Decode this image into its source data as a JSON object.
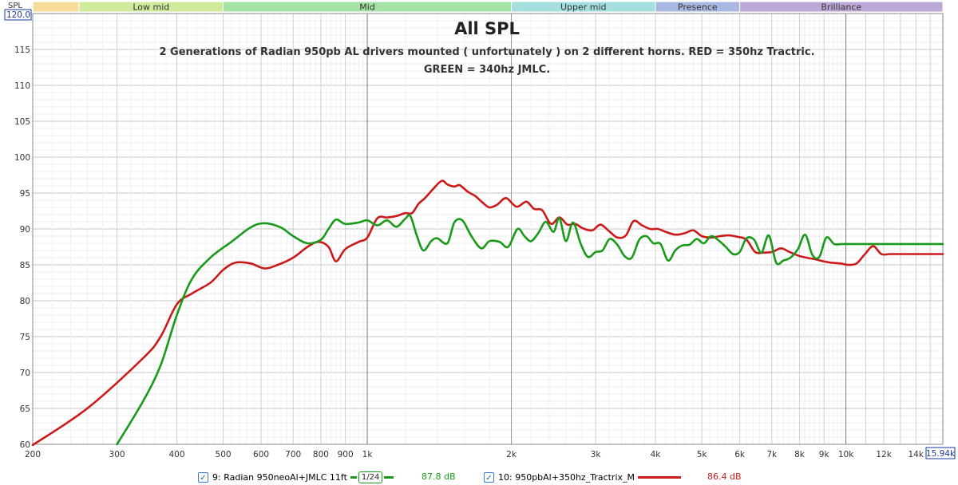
{
  "chart_data": {
    "type": "line",
    "title": "All SPL",
    "subtitle_lines": [
      "2 Generations of Radian 950pb AL drivers mounted ( unfortunately ) on 2 different horns. RED = 350hz Tractric.",
      "GREEN = 340hz JMLC."
    ],
    "ylabel": "SPL",
    "ylim": [
      60,
      120
    ],
    "xlim": [
      200,
      15940
    ],
    "x_scale": "log",
    "ymax_label": "120.0",
    "xmax_label": "15.94k",
    "grid": true,
    "y_ticks": [
      60,
      65,
      70,
      75,
      80,
      85,
      90,
      95,
      100,
      105,
      110,
      115
    ],
    "x_ticks": [
      {
        "value": 200,
        "label": "200"
      },
      {
        "value": 300,
        "label": "300"
      },
      {
        "value": 400,
        "label": "400"
      },
      {
        "value": 500,
        "label": "500"
      },
      {
        "value": 600,
        "label": "600"
      },
      {
        "value": 700,
        "label": "700"
      },
      {
        "value": 800,
        "label": "800"
      },
      {
        "value": 900,
        "label": "900"
      },
      {
        "value": 1000,
        "label": "1k"
      },
      {
        "value": 2000,
        "label": "2k"
      },
      {
        "value": 3000,
        "label": "3k"
      },
      {
        "value": 4000,
        "label": "4k"
      },
      {
        "value": 5000,
        "label": "5k"
      },
      {
        "value": 6000,
        "label": "6k"
      },
      {
        "value": 7000,
        "label": "7k"
      },
      {
        "value": 8000,
        "label": "8k"
      },
      {
        "value": 9000,
        "label": "9k"
      },
      {
        "value": 10000,
        "label": "10k"
      },
      {
        "value": 12000,
        "label": "12k"
      },
      {
        "value": 14000,
        "label": "14k"
      }
    ],
    "bands": [
      {
        "name": "",
        "from": 200,
        "to": 250,
        "color": "#f8dc9c"
      },
      {
        "name": "Low mid",
        "from": 250,
        "to": 500,
        "color": "#d0ea9c"
      },
      {
        "name": "Mid",
        "from": 500,
        "to": 2000,
        "color": "#a4e2a4"
      },
      {
        "name": "Upper mid",
        "from": 2000,
        "to": 4000,
        "color": "#a4dede"
      },
      {
        "name": "Presence",
        "from": 4000,
        "to": 6000,
        "color": "#a8b8e2"
      },
      {
        "name": "Brilliance",
        "from": 6000,
        "to": 15940,
        "color": "#bca8d8"
      }
    ],
    "series": [
      {
        "name": "9: Radian 950neoAl+JMLC 11ft",
        "color": "#1a9a1a",
        "x": [
          300,
          340,
          370,
          400,
          430,
          470,
          520,
          570,
          610,
          660,
          700,
          750,
          800,
          830,
          860,
          900,
          960,
          1000,
          1050,
          1100,
          1150,
          1200,
          1230,
          1270,
          1310,
          1360,
          1400,
          1470,
          1520,
          1580,
          1650,
          1730,
          1800,
          1890,
          1970,
          2060,
          2130,
          2200,
          2280,
          2360,
          2450,
          2520,
          2600,
          2690,
          2790,
          2890,
          3000,
          3100,
          3210,
          3330,
          3450,
          3570,
          3700,
          3830,
          3960,
          4100,
          4250,
          4400,
          4550,
          4710,
          4880,
          5050,
          5230,
          5420,
          5610,
          5810,
          6000,
          6200,
          6430,
          6660,
          6900,
          7150,
          7400,
          7660,
          7940,
          8220,
          8510,
          8800,
          9100,
          9450,
          9780,
          10130,
          10490,
          10860,
          11250,
          11650,
          12050,
          12480,
          12930,
          13390,
          13860,
          14360,
          14860,
          15400,
          15940
        ],
        "y": [
          60,
          66,
          71,
          78,
          83,
          86,
          88.2,
          90.2,
          90.8,
          90.2,
          89,
          88,
          88.5,
          90,
          91.3,
          90.7,
          90.9,
          91.2,
          90.5,
          91.2,
          90.3,
          91.4,
          91.8,
          89,
          87,
          88.3,
          88.7,
          88,
          90.9,
          91.2,
          89,
          87.3,
          88.3,
          88.2,
          87.5,
          90,
          89,
          88.3,
          89.5,
          91,
          89.6,
          91.5,
          88.3,
          90.9,
          88,
          86.1,
          86.8,
          87,
          88.6,
          87.8,
          86.2,
          86,
          88.5,
          89,
          88,
          87.9,
          85.6,
          87,
          87.7,
          87.8,
          88.6,
          88,
          89,
          88.4,
          87.5,
          86.5,
          86.8,
          88.7,
          88.5,
          86.7,
          89.1,
          85.3,
          85.6,
          86,
          87.2,
          89.2,
          86.4,
          86.1,
          88.8,
          87.9,
          87.9,
          87.9,
          87.9,
          87.9,
          87.9,
          87.9,
          87.9,
          87.9,
          87.9,
          87.9,
          87.9,
          87.9,
          87.9,
          87.9,
          87.9
        ]
      },
      {
        "name": "10: 950pbAl+350hz_Tractrix_M",
        "color": "#cc1a1a",
        "x": [
          200,
          260,
          340,
          370,
          400,
          430,
          470,
          500,
          530,
          570,
          610,
          650,
          700,
          750,
          790,
          830,
          860,
          900,
          960,
          1000,
          1050,
          1100,
          1150,
          1200,
          1240,
          1280,
          1320,
          1370,
          1430,
          1470,
          1520,
          1560,
          1620,
          1680,
          1740,
          1800,
          1870,
          1950,
          2050,
          2150,
          2230,
          2320,
          2420,
          2520,
          2620,
          2720,
          2820,
          2950,
          3070,
          3200,
          3330,
          3470,
          3600,
          3750,
          3900,
          4050,
          4200,
          4400,
          4600,
          4800,
          5000,
          5230,
          5460,
          5700,
          5940,
          6200,
          6460,
          6740,
          7020,
          7320,
          7620,
          7940,
          8270,
          8610,
          8960,
          9330,
          9720,
          10120,
          10530,
          10960,
          11400,
          11860,
          12330,
          12830,
          13340,
          13870,
          14420,
          14990,
          15580,
          15940
        ],
        "y": [
          59.9,
          65,
          72,
          75,
          79.5,
          81,
          82.5,
          84.3,
          85.3,
          85.2,
          84.5,
          85,
          86,
          87.5,
          88.2,
          87.5,
          85.5,
          87.2,
          88.2,
          88.8,
          91.5,
          91.6,
          91.8,
          92.2,
          92.2,
          93.5,
          94.3,
          95.5,
          96.7,
          96.2,
          95.9,
          96.1,
          95.2,
          94.6,
          93.7,
          93,
          93.4,
          94.3,
          93.1,
          93.8,
          92.8,
          92.6,
          90.7,
          91.6,
          90.6,
          90.7,
          90.1,
          89.8,
          90.6,
          89.7,
          88.8,
          89.1,
          91.1,
          90.5,
          90,
          90,
          89.6,
          89.2,
          89.4,
          89.8,
          89,
          88.8,
          89,
          89.1,
          88.9,
          88.5,
          86.8,
          86.7,
          86.8,
          87.3,
          86.8,
          86.3,
          86,
          85.8,
          85.5,
          85.3,
          85.2,
          85,
          85.2,
          86.5,
          87.6,
          86.5,
          86.5,
          86.5,
          86.5,
          86.5,
          86.5,
          86.5,
          86.5,
          86.5
        ]
      }
    ]
  },
  "legend": {
    "items": [
      {
        "label": "9: Radian 950neoAl+JMLC 11ft",
        "smoothing": "1/24",
        "value": "87.8 dB",
        "color": "#1a9a1a"
      },
      {
        "label": "10: 950pbAl+350hz_Tractrix_M",
        "value": "86.4 dB",
        "color": "#cc1a1a"
      }
    ]
  }
}
